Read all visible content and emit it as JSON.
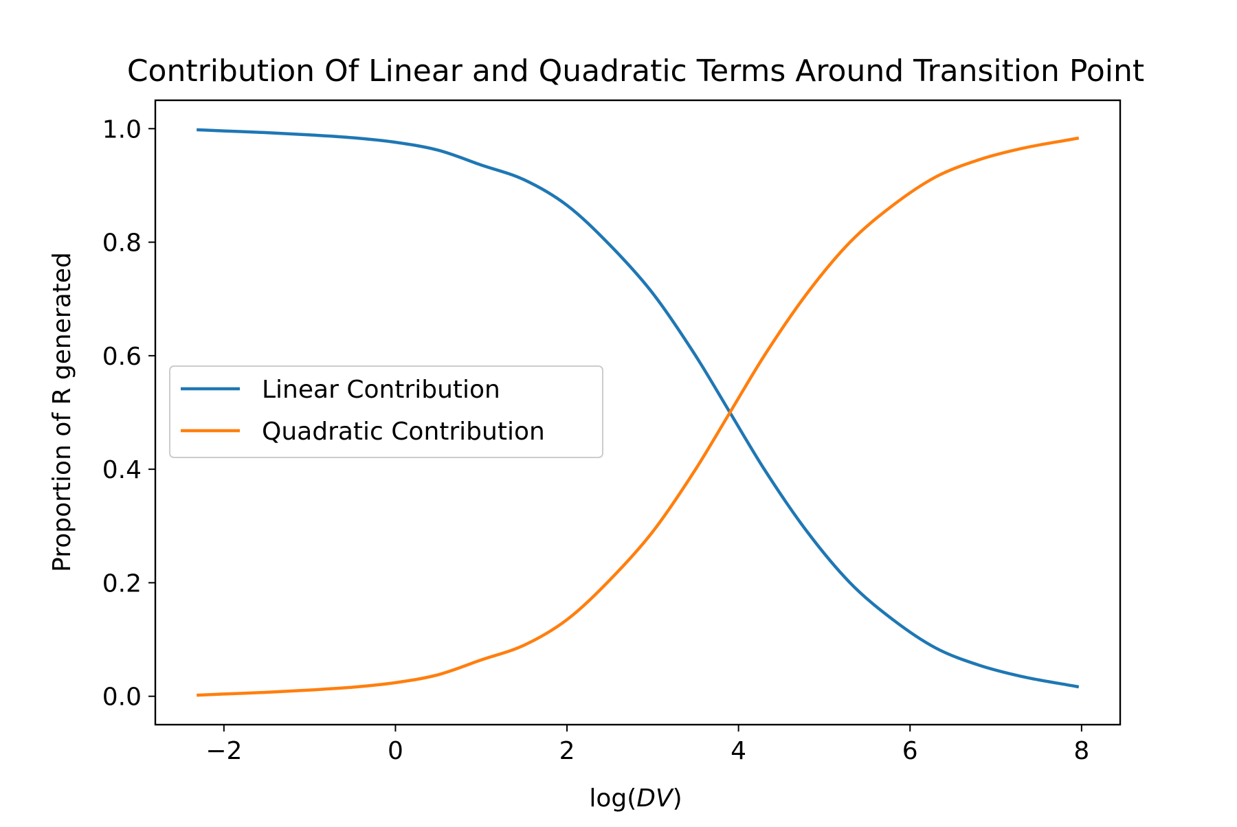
{
  "chart_data": {
    "type": "line",
    "title": "Contribution Of Linear and Quadratic Terms Around Transition Point",
    "xlabel_prefix": "log(",
    "xlabel_var": "DV",
    "xlabel_suffix": ")",
    "ylabel": "Proportion of R generated",
    "xlim": [
      -2.8,
      8.45
    ],
    "ylim": [
      -0.05,
      1.05
    ],
    "xticks": [
      -2,
      0,
      2,
      4,
      6,
      8
    ],
    "xtick_labels": [
      "−2",
      "0",
      "2",
      "4",
      "6",
      "8"
    ],
    "yticks": [
      0.0,
      0.2,
      0.4,
      0.6,
      0.8,
      1.0
    ],
    "ytick_labels": [
      "0.0",
      "0.2",
      "0.4",
      "0.6",
      "0.8",
      "1.0"
    ],
    "grid": false,
    "legend_position": "center-left",
    "x": [
      -2.3,
      -2.0,
      -1.5,
      -1.0,
      -0.5,
      0.0,
      0.5,
      1.0,
      1.5,
      2.0,
      2.5,
      3.0,
      3.5,
      3.9,
      4.3,
      4.8,
      5.3,
      5.8,
      6.3,
      6.8,
      7.3,
      7.95
    ],
    "series": [
      {
        "name": "Linear Contribution",
        "color": "#1f77b4",
        "values": [
          0.998,
          0.996,
          0.993,
          0.989,
          0.984,
          0.976,
          0.962,
          0.936,
          0.91,
          0.865,
          0.795,
          0.71,
          0.6,
          0.5,
          0.4,
          0.29,
          0.2,
          0.135,
          0.085,
          0.055,
          0.035,
          0.017
        ]
      },
      {
        "name": "Quadratic Contribution",
        "color": "#ff7f0e",
        "values": [
          0.002,
          0.004,
          0.007,
          0.011,
          0.016,
          0.024,
          0.038,
          0.064,
          0.09,
          0.135,
          0.205,
          0.29,
          0.4,
          0.5,
          0.6,
          0.71,
          0.8,
          0.865,
          0.915,
          0.945,
          0.965,
          0.983
        ]
      }
    ]
  }
}
